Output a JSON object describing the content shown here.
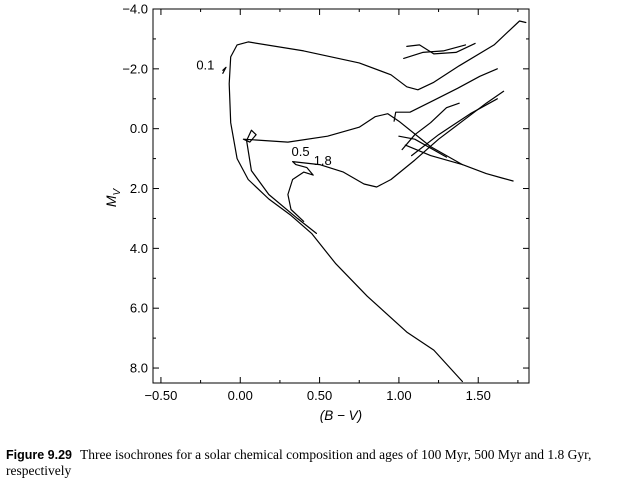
{
  "figure": {
    "caption_label": "Figure 9.29",
    "caption_text": "Three isochrones for a solar chemical composition and ages of 100 Myr, 500 Myr and 1.8 Gyr, respectively"
  },
  "chart_data": {
    "type": "line",
    "title": "",
    "xlabel": "(B − V)",
    "ylabel": "M_V",
    "xlim": [
      -0.55,
      1.82
    ],
    "ylim": [
      8.5,
      -4.0
    ],
    "y_inverted": true,
    "grid": false,
    "x_ticks": [
      {
        "value": -0.5,
        "label": "−0.50"
      },
      {
        "value": 0.0,
        "label": "0.00"
      },
      {
        "value": 0.5,
        "label": "0.50"
      },
      {
        "value": 1.0,
        "label": "1.00"
      },
      {
        "value": 1.5,
        "label": "1.50"
      }
    ],
    "y_ticks": [
      {
        "value": -4.0,
        "label": "−4.0"
      },
      {
        "value": -2.0,
        "label": "−2.0"
      },
      {
        "value": 0.0,
        "label": "0.0"
      },
      {
        "value": 2.0,
        "label": "2.0"
      },
      {
        "value": 4.0,
        "label": "4.0"
      },
      {
        "value": 6.0,
        "label": "6.0"
      },
      {
        "value": 8.0,
        "label": "8.0"
      }
    ],
    "series": [
      {
        "label": "0.1",
        "label_at": [
          -0.22,
          -2.15
        ],
        "segments": [
          [
            [
              1.4,
              8.45
            ],
            [
              1.22,
              7.4
            ],
            [
              1.05,
              6.8
            ],
            [
              0.8,
              5.6
            ],
            [
              0.6,
              4.5
            ],
            [
              0.45,
              3.5
            ],
            [
              0.32,
              2.9
            ],
            [
              0.18,
              2.35
            ],
            [
              0.05,
              1.7
            ],
            [
              -0.02,
              1.0
            ],
            [
              -0.06,
              -0.2
            ],
            [
              -0.07,
              -1.5
            ],
            [
              -0.06,
              -2.4
            ],
            [
              -0.02,
              -2.8
            ],
            [
              0.05,
              -2.9
            ],
            [
              0.4,
              -2.6
            ],
            [
              0.75,
              -2.2
            ],
            [
              0.95,
              -1.8
            ],
            [
              1.05,
              -1.4
            ],
            [
              1.12,
              -1.3
            ],
            [
              1.22,
              -1.55
            ],
            [
              1.38,
              -2.1
            ],
            [
              1.6,
              -2.8
            ],
            [
              1.7,
              -3.3
            ],
            [
              1.76,
              -3.6
            ],
            [
              1.8,
              -3.55
            ]
          ],
          [
            [
              -0.11,
              -1.85
            ],
            [
              -0.09,
              -2.05
            ],
            [
              -0.11,
              -1.95
            ]
          ],
          [
            [
              1.05,
              -2.75
            ],
            [
              1.13,
              -2.8
            ],
            [
              1.22,
              -2.5
            ],
            [
              1.36,
              -2.55
            ],
            [
              1.48,
              -2.85
            ]
          ],
          [
            [
              1.03,
              -2.35
            ],
            [
              1.15,
              -2.55
            ],
            [
              1.28,
              -2.6
            ],
            [
              1.42,
              -2.8
            ]
          ]
        ]
      },
      {
        "label": "0.5",
        "label_at": [
          0.38,
          0.75
        ],
        "segments": [
          [
            [
              0.48,
              3.5
            ],
            [
              0.36,
              3.0
            ],
            [
              0.18,
              2.2
            ],
            [
              0.07,
              1.4
            ],
            [
              0.04,
              0.4
            ],
            [
              0.07,
              0.05
            ],
            [
              0.1,
              0.2
            ],
            [
              0.06,
              0.45
            ],
            [
              0.02,
              0.35
            ],
            [
              0.3,
              0.45
            ],
            [
              0.55,
              0.25
            ],
            [
              0.75,
              -0.05
            ],
            [
              0.85,
              -0.4
            ],
            [
              0.93,
              -0.5
            ],
            [
              1.0,
              -0.25
            ],
            [
              1.2,
              0.6
            ],
            [
              1.4,
              1.2
            ],
            [
              1.55,
              1.5
            ],
            [
              1.65,
              1.65
            ],
            [
              1.72,
              1.75
            ]
          ],
          [
            [
              0.97,
              -0.25
            ],
            [
              0.98,
              -0.55
            ],
            [
              1.07,
              -0.55
            ],
            [
              1.22,
              -0.95
            ],
            [
              1.37,
              -1.35
            ],
            [
              1.51,
              -1.75
            ],
            [
              1.62,
              -2.0
            ]
          ],
          [
            [
              1.0,
              0.25
            ],
            [
              1.1,
              0.35
            ],
            [
              1.3,
              0.95
            ]
          ],
          [
            [
              1.04,
              0.55
            ],
            [
              1.2,
              0.9
            ],
            [
              1.4,
              1.2
            ]
          ]
        ]
      },
      {
        "label": "1.8",
        "label_at": [
          0.52,
          1.05
        ],
        "segments": [
          [
            [
              0.4,
              3.1
            ],
            [
              0.32,
              2.7
            ],
            [
              0.3,
              2.2
            ],
            [
              0.33,
              1.7
            ],
            [
              0.4,
              1.45
            ],
            [
              0.46,
              1.55
            ],
            [
              0.42,
              1.3
            ],
            [
              0.35,
              1.2
            ],
            [
              0.33,
              1.1
            ],
            [
              0.5,
              1.2
            ],
            [
              0.65,
              1.45
            ],
            [
              0.78,
              1.85
            ],
            [
              0.86,
              1.95
            ],
            [
              0.95,
              1.7
            ],
            [
              1.1,
              1.05
            ],
            [
              1.25,
              0.35
            ],
            [
              1.4,
              -0.25
            ],
            [
              1.55,
              -0.85
            ],
            [
              1.66,
              -1.25
            ]
          ],
          [
            [
              1.02,
              0.7
            ],
            [
              1.1,
              0.2
            ],
            [
              1.2,
              -0.2
            ],
            [
              1.3,
              -0.7
            ],
            [
              1.38,
              -0.85
            ]
          ],
          [
            [
              1.08,
              0.9
            ],
            [
              1.25,
              0.2
            ],
            [
              1.45,
              -0.5
            ],
            [
              1.62,
              -1.0
            ]
          ]
        ]
      }
    ]
  }
}
